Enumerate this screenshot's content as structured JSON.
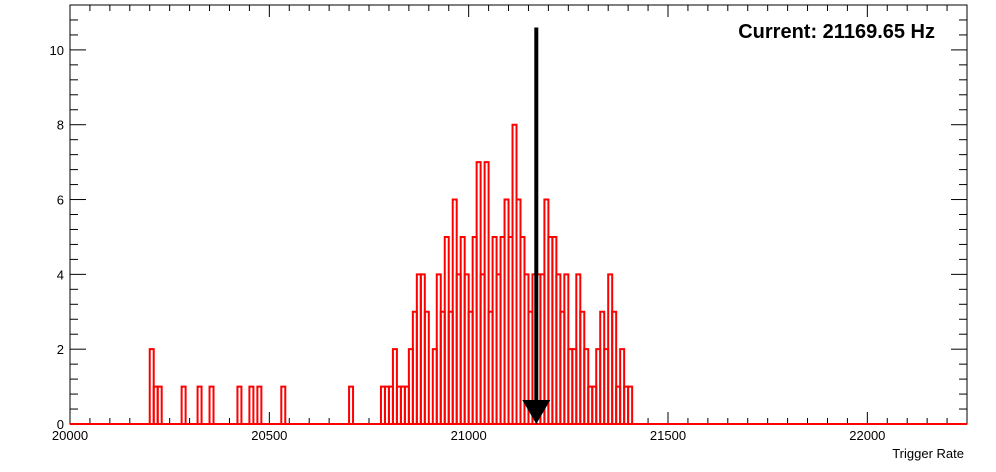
{
  "chart_data": {
    "type": "histogram",
    "title": "",
    "xlabel": "Trigger Rate",
    "ylabel": "",
    "xlim": [
      20000,
      22250
    ],
    "ylim": [
      0,
      11.2
    ],
    "x_ticks": [
      20000,
      20500,
      21000,
      21500,
      22000
    ],
    "x_tick_labels": [
      "20000",
      "20500",
      "21000",
      "21500",
      "22000"
    ],
    "y_ticks": [
      0,
      2,
      4,
      6,
      8,
      10
    ],
    "y_tick_labels": [
      "0",
      "2",
      "4",
      "6",
      "8",
      "10"
    ],
    "grid": false,
    "legend": "none",
    "colors": {
      "series": "#ff0000",
      "marker": "#000000",
      "frame": "#000000"
    },
    "series": [
      {
        "x": [
          20200,
          20210,
          20220,
          20280,
          20320,
          20350,
          20420,
          20450,
          20470,
          20530,
          20700,
          20780,
          20790,
          20800,
          20810,
          20820,
          20830,
          20840,
          20850,
          20860,
          20870,
          20880,
          20890,
          20910,
          20920,
          20930,
          20940,
          20950,
          20960,
          20970,
          20980,
          20990,
          21000,
          21010,
          21020,
          21030,
          21040,
          21050,
          21060,
          21070,
          21080,
          21090,
          21100,
          21110,
          21120,
          21130,
          21140,
          21150,
          21160,
          21170,
          21180,
          21190,
          21200,
          21210,
          21220,
          21230,
          21240,
          21250,
          21260,
          21270,
          21280,
          21290,
          21300,
          21310,
          21320,
          21330,
          21340,
          21350,
          21360,
          21370,
          21380,
          21390,
          21400,
          21410
        ],
        "values": [
          2,
          1,
          1,
          1,
          1,
          1,
          1,
          1,
          1,
          1,
          1,
          1,
          1,
          1,
          2,
          1,
          1,
          1,
          2,
          3,
          4,
          4,
          3,
          2,
          4,
          3,
          5,
          3,
          6,
          4,
          5,
          4,
          3,
          5,
          7,
          4,
          7,
          3,
          5,
          4,
          5,
          6,
          5,
          8,
          6,
          5,
          4,
          3,
          4,
          4,
          4,
          6,
          5,
          5,
          4,
          3,
          4,
          2,
          2,
          4,
          3,
          2,
          1,
          1,
          2,
          3,
          2,
          4,
          3,
          1,
          2,
          1,
          1,
          0
        ]
      }
    ],
    "annotations": [
      {
        "text": "Current: 21169.65 Hz",
        "arrow_x": 21169.65,
        "arrow_top_y": 10.6,
        "arrow_tip_y": 0
      }
    ]
  }
}
